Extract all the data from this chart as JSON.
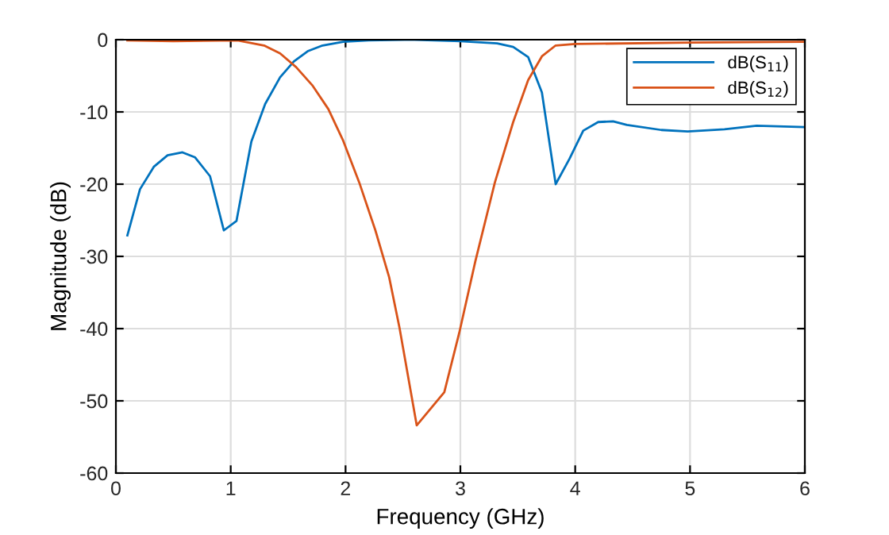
{
  "chart_data": {
    "type": "line",
    "xlabel": "Frequency (GHz)",
    "ylabel": "Magnitude (dB)",
    "xlim": [
      0,
      6
    ],
    "ylim": [
      -60,
      0
    ],
    "xticks": [
      0,
      1,
      2,
      3,
      4,
      5,
      6
    ],
    "yticks": [
      -60,
      -50,
      -40,
      -30,
      -20,
      -10,
      0
    ],
    "grid": true,
    "legend": "top right",
    "marker": "none",
    "line_style": "solid",
    "series": [
      {
        "name": "dB(S$_{11}$)",
        "color": "#0072bd",
        "x": [
          0.1,
          0.21,
          0.33,
          0.45,
          0.58,
          0.69,
          0.82,
          0.94,
          1.05,
          1.18,
          1.3,
          1.43,
          1.55,
          1.67,
          1.8,
          1.98,
          2.2,
          2.6,
          3.0,
          3.32,
          3.46,
          3.59,
          3.71,
          3.83,
          3.95,
          4.07,
          4.2,
          4.33,
          4.45,
          4.75,
          4.98,
          5.3,
          5.58,
          6.0
        ],
        "values": [
          -27.1,
          -20.7,
          -17.6,
          -16.0,
          -15.6,
          -16.3,
          -18.9,
          -26.4,
          -25.1,
          -14.1,
          -8.9,
          -5.2,
          -3.0,
          -1.6,
          -0.8,
          -0.3,
          -0.1,
          0,
          -0.2,
          -0.5,
          -1.0,
          -2.4,
          -7.3,
          -20.0,
          -16.5,
          -12.6,
          -11.4,
          -11.3,
          -11.8,
          -12.5,
          -12.7,
          -12.4,
          -11.9,
          -12.1
        ]
      },
      {
        "name": "dB(S$_{12}$)",
        "color": "#d95319",
        "x": [
          0.1,
          0.5,
          1.06,
          1.29,
          1.43,
          1.57,
          1.71,
          1.85,
          1.98,
          2.12,
          2.26,
          2.38,
          2.47,
          2.62,
          2.86,
          2.99,
          3.13,
          3.3,
          3.46,
          3.59,
          3.71,
          3.83,
          4.0,
          5.0,
          6.0
        ],
        "values": [
          -0.1,
          -0.2,
          -0.1,
          -0.8,
          -1.9,
          -3.8,
          -6.3,
          -9.6,
          -14.0,
          -19.8,
          -26.4,
          -32.9,
          -39.9,
          -53.4,
          -48.8,
          -40.6,
          -30.7,
          -19.8,
          -11.4,
          -5.6,
          -2.3,
          -0.8,
          -0.6,
          -0.4,
          -0.3
        ]
      }
    ]
  }
}
